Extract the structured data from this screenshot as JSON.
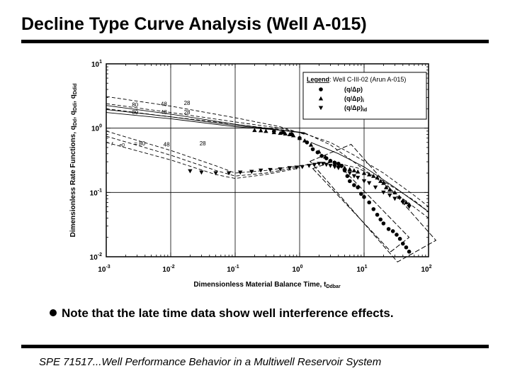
{
  "slide": {
    "title": "Decline Type Curve Analysis (Well A-015)",
    "bullet": "Note that the late time data show well interference effects.",
    "footer": "SPE 71517...Well Performance Behavior in a Multiwell Reservoir System"
  },
  "chart_data": {
    "type": "scatter",
    "title": "",
    "xlabel_main": "Dimensionless Material Balance Time, t",
    "xlabel_sub": "Ddbar",
    "ylabel_main": "Dimensionless Rate Functions, q",
    "ylabel_sub1": "Dd",
    "ylabel_mid": ", q",
    "ylabel_sub2": "Ddi",
    "ylabel_sep": ", q",
    "ylabel_sub3": "Ddid",
    "xscale": "log",
    "yscale": "log",
    "xlim": [
      0.001,
      100
    ],
    "ylim": [
      0.01,
      10
    ],
    "x_ticks": [
      {
        "value": 0.001,
        "base": "10",
        "exp": "-3"
      },
      {
        "value": 0.01,
        "base": "10",
        "exp": "-2"
      },
      {
        "value": 0.1,
        "base": "10",
        "exp": "-1"
      },
      {
        "value": 1,
        "base": "10",
        "exp": "0"
      },
      {
        "value": 10,
        "base": "10",
        "exp": "1"
      },
      {
        "value": 100,
        "base": "10",
        "exp": "2"
      }
    ],
    "y_ticks": [
      {
        "value": 0.01,
        "base": "10",
        "exp": "-2"
      },
      {
        "value": 0.1,
        "base": "10",
        "exp": "-1"
      },
      {
        "value": 1,
        "base": "10",
        "exp": "0"
      },
      {
        "value": 10,
        "base": "10",
        "exp": "1"
      }
    ],
    "grid": true,
    "legend": {
      "placement": "top-right",
      "title_bold": "Legend",
      "title_rest": ": Well C-III-02 (Arun A-015)",
      "entries": [
        {
          "marker": "circle",
          "label": "(q/Δp)",
          "sub": ""
        },
        {
          "marker": "triangle-up",
          "label": "(q/Δp)",
          "sub": "i"
        },
        {
          "marker": "triangle-down",
          "label": "(q/Δp)",
          "sub": "id"
        }
      ]
    },
    "curve_labels": [
      {
        "text": "80",
        "x": 0.0025,
        "y": 2.15
      },
      {
        "text": "48",
        "x": 0.007,
        "y": 2.2
      },
      {
        "text": "28",
        "x": 0.016,
        "y": 2.3
      },
      {
        "text": "80",
        "x": 0.0025,
        "y": 1.65
      },
      {
        "text": "48",
        "x": 0.007,
        "y": 1.65
      },
      {
        "text": "28",
        "x": 0.016,
        "y": 1.65
      },
      {
        "text": "r",
        "x": 0.0012,
        "y": 0.54
      },
      {
        "text": "eD",
        "x": 0.0016,
        "y": 0.52
      },
      {
        "text": "= 80",
        "x": 0.0027,
        "y": 0.54
      },
      {
        "text": "48",
        "x": 0.0077,
        "y": 0.52
      },
      {
        "text": "28",
        "x": 0.028,
        "y": 0.54
      }
    ],
    "series": [
      {
        "name": "(q/Δp)",
        "marker": "circle",
        "x": [
          0.4,
          0.55,
          0.75,
          1.0,
          1.3,
          1.6,
          1.9,
          2.2,
          2.6,
          3.0,
          3.5,
          4.0,
          4.5,
          5.0,
          5.5,
          6.0,
          7.0,
          8.0,
          9.0,
          10,
          12,
          14,
          16,
          18,
          20,
          24,
          28,
          32,
          36,
          40,
          45,
          50
        ],
        "y": [
          0.89,
          0.86,
          0.81,
          0.7,
          0.6,
          0.47,
          0.42,
          0.37,
          0.34,
          0.31,
          0.29,
          0.28,
          0.26,
          0.22,
          0.18,
          0.15,
          0.13,
          0.12,
          0.095,
          0.085,
          0.07,
          0.055,
          0.045,
          0.038,
          0.033,
          0.027,
          0.025,
          0.022,
          0.019,
          0.016,
          0.014,
          0.012
        ]
      },
      {
        "name": "(q/Δp)i",
        "marker": "triangle-up",
        "x": [
          0.2,
          0.25,
          0.3,
          0.4,
          0.5,
          0.6,
          0.7,
          0.8,
          1.0,
          1.2,
          1.5,
          2.0,
          2.5,
          3.0,
          3.5,
          4.0,
          5.0,
          6.0,
          7.0,
          8.0,
          10,
          12,
          14,
          16,
          18,
          20,
          22,
          25,
          30,
          35,
          40,
          45,
          50
        ],
        "y": [
          0.93,
          0.92,
          0.9,
          0.86,
          0.84,
          0.82,
          0.8,
          0.77,
          0.7,
          0.64,
          0.55,
          0.43,
          0.36,
          0.31,
          0.28,
          0.26,
          0.24,
          0.23,
          0.22,
          0.21,
          0.2,
          0.19,
          0.18,
          0.17,
          0.15,
          0.14,
          0.12,
          0.11,
          0.1,
          0.085,
          0.075,
          0.07,
          0.065
        ]
      },
      {
        "name": "(q/Δp)id",
        "marker": "triangle-down",
        "x": [
          0.02,
          0.03,
          0.05,
          0.08,
          0.12,
          0.18,
          0.25,
          0.35,
          0.5,
          0.7,
          0.9,
          1.1,
          1.4,
          1.7,
          2.0,
          2.3,
          2.6,
          3.0,
          3.5,
          4.0,
          5.0,
          6.0,
          7.0,
          8.0,
          10,
          12,
          15,
          20,
          25,
          30,
          40,
          50
        ],
        "y": [
          0.215,
          0.205,
          0.2,
          0.2,
          0.205,
          0.21,
          0.22,
          0.225,
          0.23,
          0.24,
          0.245,
          0.25,
          0.26,
          0.27,
          0.28,
          0.28,
          0.27,
          0.26,
          0.25,
          0.24,
          0.22,
          0.2,
          0.18,
          0.17,
          0.15,
          0.14,
          0.12,
          0.1,
          0.09,
          0.08,
          0.07,
          0.06
        ]
      }
    ]
  }
}
